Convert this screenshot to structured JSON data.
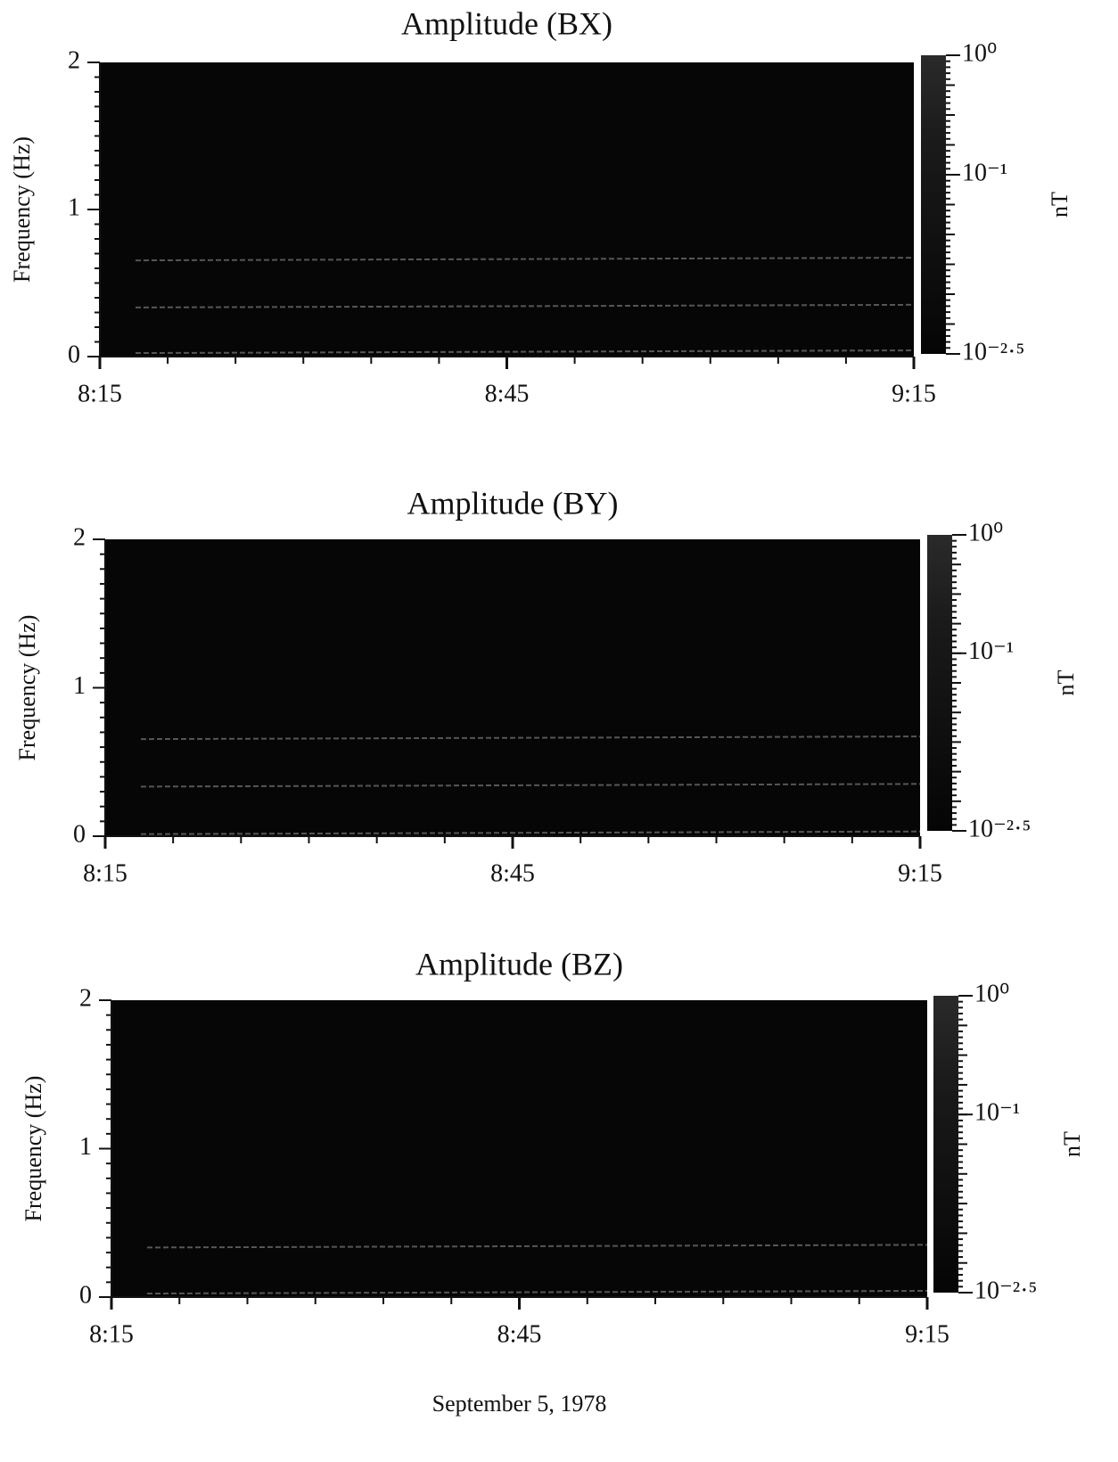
{
  "chart_data": [
    {
      "type": "spectrogram",
      "title": "Amplitude (BX)",
      "ylabel": "Frequency (Hz)",
      "xticks": [
        "8:15",
        "8:45",
        "9:15"
      ],
      "ylim": [
        0,
        2
      ],
      "yticks": [
        0,
        1,
        2
      ],
      "bands": [
        0.66,
        0.34,
        0.03
      ],
      "colorbar": {
        "label": "nT",
        "log": true,
        "lim": [
          0.0031623,
          1
        ],
        "ticks": [
          {
            "value": 1,
            "label": "10⁰"
          },
          {
            "value": 0.1,
            "label": "10⁻¹"
          },
          {
            "value": 0.0031623,
            "label": "10⁻²·⁵"
          }
        ]
      }
    },
    {
      "type": "spectrogram",
      "title": "Amplitude (BY)",
      "ylabel": "Frequency (Hz)",
      "xticks": [
        "8:15",
        "8:45",
        "9:15"
      ],
      "ylim": [
        0,
        2
      ],
      "yticks": [
        0,
        1,
        2
      ],
      "bands": [
        0.66,
        0.34,
        0.02
      ],
      "colorbar": {
        "label": "nT",
        "log": true,
        "lim": [
          0.0031623,
          1
        ],
        "ticks": [
          {
            "value": 1,
            "label": "10⁰"
          },
          {
            "value": 0.1,
            "label": "10⁻¹"
          },
          {
            "value": 0.0031623,
            "label": "10⁻²·⁵"
          }
        ]
      }
    },
    {
      "type": "spectrogram",
      "title": "Amplitude (BZ)",
      "ylabel": "Frequency (Hz)",
      "xlabel": "September 5, 1978",
      "xticks": [
        "8:15",
        "8:45",
        "9:15"
      ],
      "ylim": [
        0,
        2
      ],
      "yticks": [
        0,
        1,
        2
      ],
      "bands": [
        0.34,
        0.03
      ],
      "colorbar": {
        "label": "nT",
        "log": true,
        "lim": [
          0.0031623,
          1
        ],
        "ticks": [
          {
            "value": 1,
            "label": "10⁰"
          },
          {
            "value": 0.1,
            "label": "10⁻¹"
          },
          {
            "value": 0.0031623,
            "label": "10⁻²·⁵"
          }
        ]
      }
    }
  ]
}
